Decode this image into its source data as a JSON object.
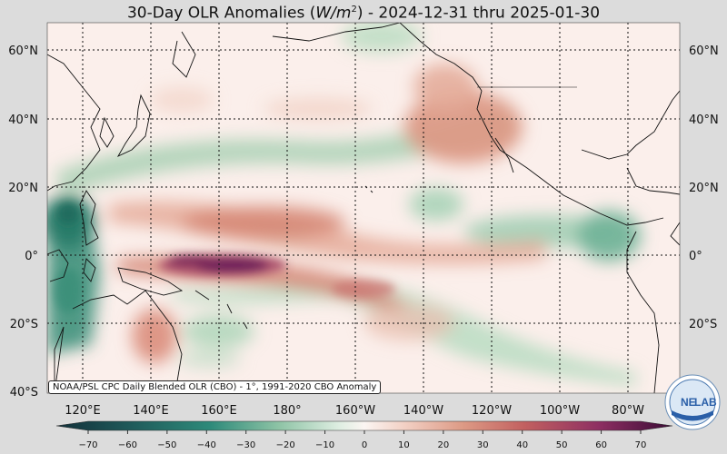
{
  "title": {
    "prefix": "30-Day OLR Anomalies (",
    "unit_base": "W/m",
    "unit_exp": "2",
    "suffix": ") - 2024-12-31 thru 2025-01-30"
  },
  "source_note": "NOAA/PSL CPC Daily Blended OLR (CBO) - 1°, 1991-2020 CBO Anomaly",
  "map": {
    "lon_range_east": [
      110,
      310
    ],
    "lat_range": [
      -40,
      68
    ],
    "lat_labels": [
      "60°N",
      "40°N",
      "20°N",
      "0°",
      "20°S",
      "40°S"
    ],
    "lon_labels": [
      "120°E",
      "140°E",
      "160°E",
      "180°",
      "160°W",
      "140°W",
      "120°W",
      "100°W",
      "80°W"
    ],
    "gridlines": "dotted",
    "colormap": {
      "range": [
        -70,
        70
      ],
      "negative_color": "#1f5a4e",
      "neutral_color": "#fbf1ee",
      "positive_color": "#5c1150"
    }
  },
  "colorbar": {
    "ticks": [
      "−70",
      "−60",
      "−50",
      "−40",
      "−30",
      "−20",
      "−10",
      "0",
      "10",
      "20",
      "30",
      "40",
      "50",
      "60",
      "70"
    ]
  },
  "logo": {
    "text_left": "NE",
    "text_right": "LAB",
    "name": "noaa-physical-sciences-lab-logo"
  }
}
